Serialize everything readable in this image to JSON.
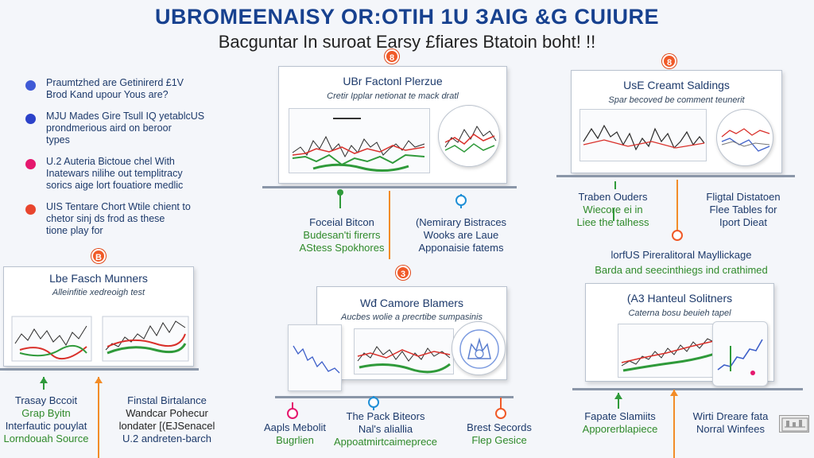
{
  "header": {
    "title": "UBROMEENAISY OR:OTIH 1U ЗAIG &G CUIURE",
    "subtitle": "Bacguntar In suroat Earsy £fiares Btatoin boht! !!"
  },
  "bullets": [
    {
      "color": "#3f5ad6",
      "lines": [
        "Praumtzhed are Getinirerd £1V",
        "Brod Kand upour Yous are?"
      ]
    },
    {
      "color": "#2b42c9",
      "lines": [
        "MJU Mades Gire Tsull IQ yetablcUS",
        "prondmerious aird on beroor",
        "types"
      ]
    },
    {
      "color": "#e5186e",
      "lines": [
        "U.2 Auteria Bictoue chel With",
        "Inatewars nilihe out templitracy",
        "sorics aige lort fouatiore medlic"
      ]
    },
    {
      "color": "#e8452e",
      "lines": [
        "UIS Tentare Chort Wtile chient to",
        "chetor sinj ds frod as these",
        "tione play for"
      ]
    }
  ],
  "panels": [
    {
      "id": "p1",
      "title": "UBr Factonl Plerzue",
      "subtitle": "Cretir Ipplar netionat te mack dratl",
      "badge": "8"
    },
    {
      "id": "p2",
      "title": "UsE Creamt Saldings",
      "subtitle": "Spar becoved be comment teunerit",
      "badge": "8"
    },
    {
      "id": "p3",
      "title": "Lbe Fasch Munners",
      "subtitle": "Alleinfitie xedreoigh test",
      "badge": "B"
    },
    {
      "id": "p4",
      "title": "Wđ Camore Blamers",
      "subtitle": "Aucbes wolie a precrtibe sumpasinis",
      "badge": "3"
    },
    {
      "id": "p5",
      "title": "(A3 Hanteul Solitners",
      "subtitle": "Caterna bosu beuieh tapel",
      "badge": ""
    }
  ],
  "labels": {
    "focal": [
      "Foceial Bitcon",
      "Budesan'ti firerrs",
      "AStess Spokhores"
    ],
    "nemirary": [
      "(Nemirary Bistraces",
      "Wooks are Laue",
      "Apponaisie fatems"
    ],
    "traben": [
      "Traben Ouders",
      "Wiecore ei in",
      "Liee the talhess"
    ],
    "fligtal": [
      "Fligtal Distatoen",
      "Flee Tables for",
      "Iport Dieat"
    ],
    "mid_line1": "lorfUS Pireralitoral Mayllickage",
    "mid_line2": "Barda and seecinthiegs ind crathimed",
    "trasy": [
      "Trasay Bccoit",
      "Grap Byitn",
      "Interfautic pouylat",
      "Lorndouah Source"
    ],
    "finstal": [
      "Finstal Birtalance",
      "Wandcar Pohecur",
      "londater [(EJSenacel",
      "U.2 andreten-barch"
    ],
    "aapis": [
      "Aapls Mebolit",
      "Bugrlien"
    ],
    "pack": [
      "The Pack Biteors",
      "Nal's aliallia",
      "Appoatmirtcaimeprece"
    ],
    "brest": [
      "Brest Secords",
      "Flep Gesice"
    ],
    "fapate": [
      "Fapate Slamiits",
      "Apporerblapiece"
    ],
    "wirti": [
      "Wirti Dreare fata",
      "Norral Winfees"
    ]
  },
  "icons": {
    "watermark": "watermark-icon"
  }
}
